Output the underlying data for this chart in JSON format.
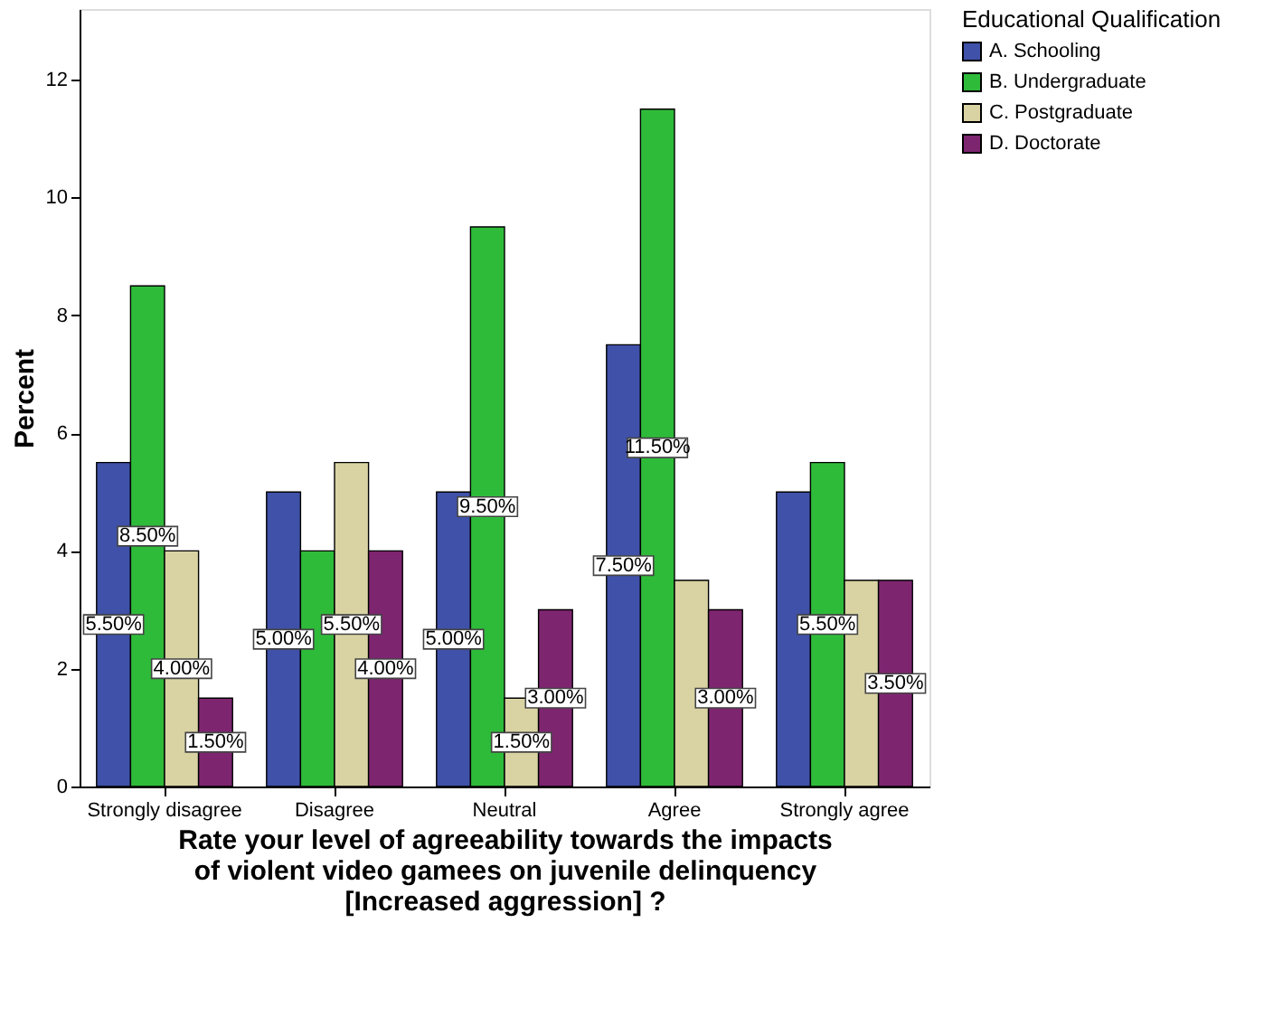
{
  "chart_data": {
    "type": "bar",
    "xlabel": "Rate your level of agreeability towards the impacts\nof violent video gamees on juvenile delinquency\n[Increased aggression] ?",
    "ylabel": "Percent",
    "legend_title": "Educational Qualification",
    "categories": [
      "Strongly disagree",
      "Disagree",
      "Neutral",
      "Agree",
      "Strongly agree"
    ],
    "series": [
      {
        "name": "A. Schooling",
        "color": "#3f51a8",
        "values": [
          5.5,
          5.0,
          5.0,
          7.5,
          5.0
        ],
        "value_labels": [
          "5.50%",
          "5.00%",
          "5.00%",
          "7.50%",
          null
        ]
      },
      {
        "name": "B. Undergraduate",
        "color": "#2fbb3a",
        "values": [
          8.5,
          4.0,
          9.5,
          11.5,
          5.5
        ],
        "value_labels": [
          "8.50%",
          null,
          "9.50%",
          "11.50%",
          "5.50%"
        ]
      },
      {
        "name": "C. Postgraduate",
        "color": "#d9d3a3",
        "values": [
          4.0,
          5.5,
          1.5,
          3.5,
          3.5
        ],
        "value_labels": [
          "4.00%",
          "5.50%",
          "1.50%",
          null,
          null
        ]
      },
      {
        "name": "D. Doctorate",
        "color": "#7e2570",
        "values": [
          1.5,
          4.0,
          3.0,
          3.0,
          3.5
        ],
        "value_labels": [
          "1.50%",
          "4.00%",
          "3.00%",
          "3.00%",
          "3.50%"
        ]
      }
    ],
    "ylim": [
      0,
      13.2
    ],
    "yticks": [
      0,
      2,
      4,
      6,
      8,
      10,
      12
    ],
    "grid": false,
    "legend": "top right"
  }
}
